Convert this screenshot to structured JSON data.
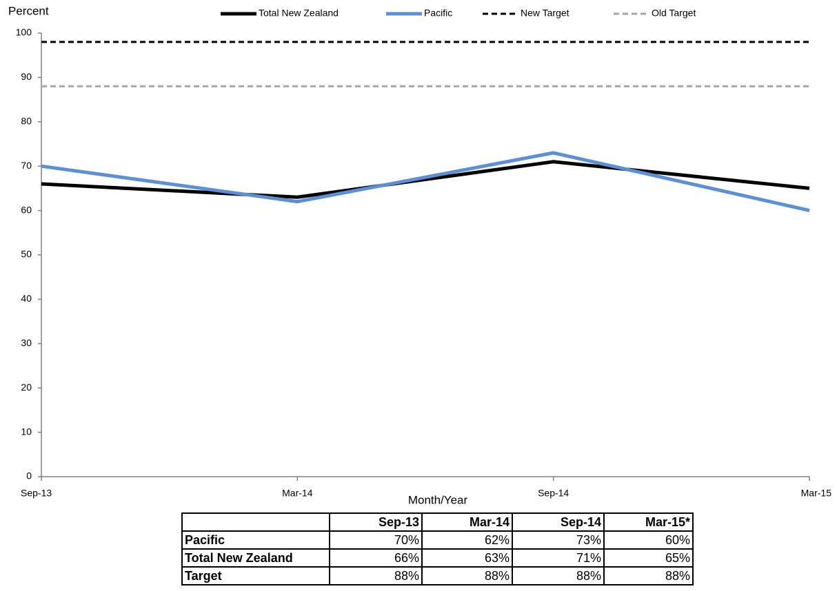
{
  "chart_data": {
    "type": "line",
    "y_label": "Percent",
    "x_label": "Month/Year",
    "categories": [
      "Sep-13",
      "Mar-14",
      "Sep-14",
      "Mar-15"
    ],
    "series": [
      {
        "name": "Total New Zealand",
        "color": "#000000",
        "dashed": false,
        "values": [
          66,
          63,
          71,
          65
        ]
      },
      {
        "name": "Pacific",
        "color": "#5b8fd6",
        "dashed": false,
        "values": [
          70,
          62,
          73,
          60
        ]
      },
      {
        "name": "New Target",
        "color": "#000000",
        "dashed": true,
        "values": [
          98,
          98,
          98,
          98
        ]
      },
      {
        "name": "Old Target",
        "color": "#a6a6a6",
        "dashed": true,
        "values": [
          88,
          88,
          88,
          88
        ]
      }
    ],
    "ylim": [
      0,
      100
    ],
    "yticks": [
      0,
      10,
      20,
      30,
      40,
      50,
      60,
      70,
      80,
      90,
      100
    ],
    "legend": "top",
    "grid": false
  },
  "table": {
    "columns": [
      "Sep-13",
      "Mar-14",
      "Sep-14",
      "Mar-15*"
    ],
    "rows": [
      {
        "label": "Pacific",
        "cells": [
          "70%",
          "62%",
          "73%",
          "60%"
        ]
      },
      {
        "label": "Total New Zealand",
        "cells": [
          "66%",
          "63%",
          "71%",
          "65%"
        ]
      },
      {
        "label": "Target",
        "cells": [
          "88%",
          "88%",
          "88%",
          "88%"
        ]
      }
    ]
  }
}
